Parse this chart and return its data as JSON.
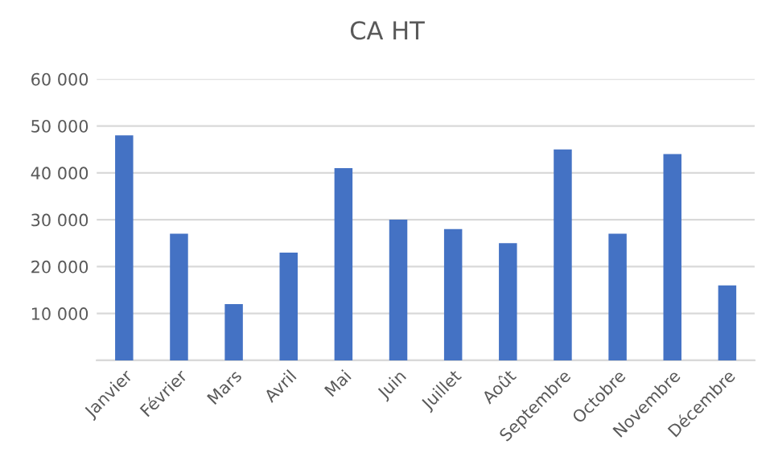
{
  "chart_data": {
    "type": "bar",
    "title": "CA HT",
    "categories": [
      "Janvier",
      "Février",
      "Mars",
      "Avril",
      "Mai",
      "Juin",
      "Juillet",
      "Août",
      "Septembre",
      "Octobre",
      "Novembre",
      "Décembre"
    ],
    "values": [
      48000,
      27000,
      12000,
      23000,
      41000,
      30000,
      28000,
      25000,
      45000,
      27000,
      44000,
      16000
    ],
    "color": "#4472c4",
    "ylim": [
      0,
      60000
    ],
    "yticks": [
      {
        "value": 0,
        "label": null
      },
      {
        "value": 10000,
        "label": "10 000"
      },
      {
        "value": 20000,
        "label": "20 000"
      },
      {
        "value": 30000,
        "label": "30 000"
      },
      {
        "value": 40000,
        "label": "40 000"
      },
      {
        "value": 50000,
        "label": "50 000"
      },
      {
        "value": 60000,
        "label": "60 000"
      }
    ],
    "grid": "y",
    "legend": false
  }
}
